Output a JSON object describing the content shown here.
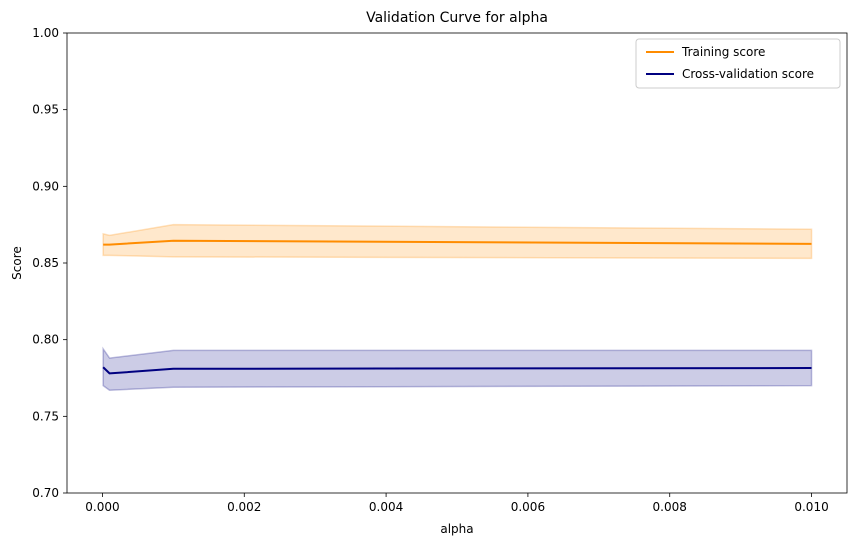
{
  "chart_data": {
    "type": "line",
    "title": "Validation Curve for alpha",
    "xlabel": "alpha",
    "ylabel": "Score",
    "xlim": [
      -0.0005,
      0.0105
    ],
    "ylim": [
      0.7,
      1.0
    ],
    "xticks": [
      0.0,
      0.002,
      0.004,
      0.006,
      0.008,
      0.01
    ],
    "xtick_labels": [
      "0.000",
      "0.002",
      "0.004",
      "0.006",
      "0.008",
      "0.010"
    ],
    "yticks": [
      0.7,
      0.75,
      0.8,
      0.85,
      0.9,
      0.95,
      1.0
    ],
    "ytick_labels": [
      "0.70",
      "0.75",
      "0.80",
      "0.85",
      "0.90",
      "0.95",
      "1.00"
    ],
    "grid": false,
    "legend_position": "top-right",
    "x": [
      1e-05,
      0.0001,
      0.001,
      0.01
    ],
    "series": [
      {
        "name": "Training score",
        "color": "#ff8c00",
        "values": [
          0.862,
          0.862,
          0.8645,
          0.8625
        ],
        "lower": [
          0.855,
          0.855,
          0.854,
          0.853
        ],
        "upper": [
          0.869,
          0.868,
          0.875,
          0.872
        ]
      },
      {
        "name": "Cross-validation score",
        "color": "#000080",
        "values": [
          0.782,
          0.778,
          0.781,
          0.7815
        ],
        "lower": [
          0.77,
          0.767,
          0.769,
          0.77
        ],
        "upper": [
          0.794,
          0.788,
          0.793,
          0.793
        ]
      }
    ]
  }
}
